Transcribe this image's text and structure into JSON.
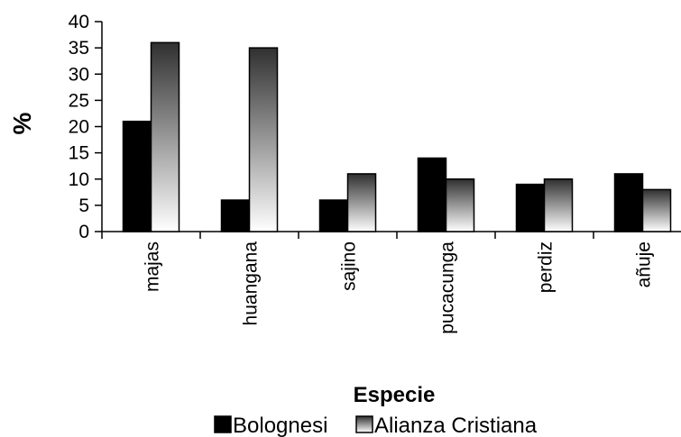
{
  "chart_data": {
    "type": "bar",
    "xlabel": "Especie",
    "ylabel": "%",
    "ylim": [
      0,
      40
    ],
    "yticks": [
      "0",
      "5",
      "10",
      "15",
      "20",
      "25",
      "30",
      "35",
      "40"
    ],
    "categories": [
      "majas",
      "huangana",
      "sajino",
      "pucacunga",
      "perdiz",
      "añuje"
    ],
    "series": [
      {
        "name": "Bolognesi",
        "values": [
          21,
          6,
          6,
          14,
          9,
          11
        ],
        "color": "#000000"
      },
      {
        "name": "Alianza Cristiana",
        "values": [
          36,
          35,
          11,
          10,
          10,
          8
        ],
        "gradient": [
          "#303030",
          "#ffffff"
        ]
      }
    ],
    "grid": false,
    "legend_position": "bottom"
  }
}
